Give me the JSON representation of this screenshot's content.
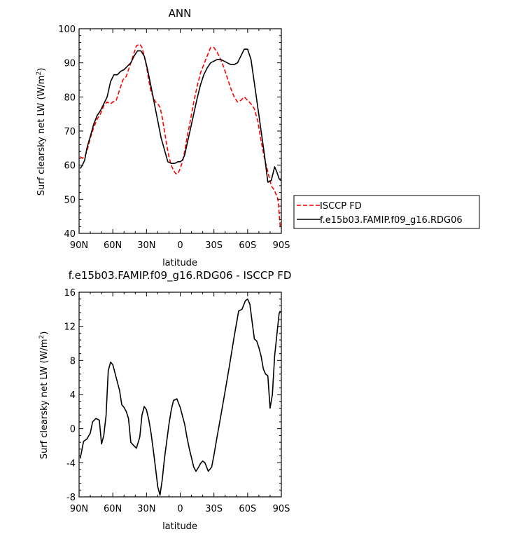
{
  "chart_data": [
    {
      "type": "line",
      "title": "ANN",
      "xlabel": "latitude",
      "ylabel": "Surf clearsky net LW (W/m²)",
      "ylabel_main": "Surf clearsky net LW (W/m",
      "ylabel_sup": "2",
      "ylabel_end": ")",
      "xlim": [
        90,
        -90
      ],
      "ylim": [
        40,
        100
      ],
      "x_ticks": [
        90,
        60,
        30,
        0,
        -30,
        -60,
        -90
      ],
      "x_tick_labels": [
        "90N",
        "60N",
        "30N",
        "0",
        "30S",
        "60S",
        "90S"
      ],
      "y_ticks": [
        40,
        50,
        60,
        70,
        80,
        90,
        100
      ],
      "y_tick_labels": [
        "40",
        "50",
        "60",
        "70",
        "80",
        "90",
        "100"
      ],
      "grid": false,
      "legend_position": "right",
      "series": [
        {
          "name": "ISCCP FD",
          "color": "#ff0000",
          "dash": "dashed",
          "x": [
            89,
            87,
            85,
            83,
            80,
            77,
            74,
            71,
            68,
            65,
            62,
            60,
            57,
            54,
            51,
            48,
            45,
            42,
            39,
            36,
            34,
            32,
            30,
            28,
            26,
            24,
            22,
            20,
            18,
            16,
            14,
            12,
            10,
            8,
            6,
            4,
            2,
            0,
            -2,
            -4,
            -6,
            -9,
            -12,
            -15,
            -18,
            -21,
            -24,
            -27,
            -30,
            -33,
            -36,
            -39,
            -42,
            -45,
            -48,
            -51,
            -54,
            -57,
            -60,
            -63,
            -66,
            -69,
            -72,
            -75,
            -78,
            -81,
            -84,
            -87,
            -89
          ],
          "y": [
            62.5,
            62,
            62.5,
            64,
            68,
            71,
            73.5,
            75,
            77.5,
            78.5,
            78,
            78.5,
            79,
            82,
            85,
            86,
            89,
            92,
            95,
            95.5,
            94.5,
            92,
            89,
            85,
            81.5,
            80,
            78.5,
            78,
            77,
            74,
            70,
            66,
            62.5,
            60,
            58.5,
            57.5,
            57.5,
            59,
            61,
            64,
            68,
            73,
            78.5,
            83,
            87,
            89.5,
            92,
            94.5,
            94.5,
            93,
            91,
            88.5,
            85.5,
            82.5,
            80,
            78.5,
            79,
            80,
            79,
            78,
            76.5,
            73,
            67,
            62,
            58,
            54,
            52.5,
            50,
            42
          ]
        },
        {
          "name": "f.e15b03.FAMIP.f09_g16.RDG06",
          "color": "#000000",
          "dash": "solid",
          "x": [
            89,
            87,
            85,
            83,
            80,
            77,
            74,
            71,
            68,
            65,
            62,
            59,
            56,
            53,
            50,
            47,
            44,
            41,
            38,
            35,
            32,
            29,
            26,
            23,
            20,
            17,
            14,
            11,
            8,
            5,
            2,
            0,
            -2,
            -4,
            -6,
            -9,
            -12,
            -15,
            -18,
            -21,
            -24,
            -27,
            -30,
            -33,
            -36,
            -39,
            -42,
            -45,
            -48,
            -51,
            -54,
            -57,
            -60,
            -63,
            -66,
            -69,
            -72,
            -75,
            -78,
            -81,
            -84,
            -86,
            -88,
            -89.5
          ],
          "y": [
            59,
            60,
            61.5,
            65,
            68.5,
            72,
            74.5,
            76,
            78,
            80,
            84.5,
            86.5,
            86.5,
            87.5,
            88,
            89,
            90,
            92,
            93.5,
            93.5,
            92,
            88,
            83,
            78,
            73,
            68,
            64.5,
            61,
            60.5,
            60.5,
            61,
            61,
            61.5,
            63,
            66,
            70.5,
            75,
            79.5,
            83.5,
            86.5,
            88.5,
            90,
            90.5,
            91,
            91,
            90.5,
            90,
            89.5,
            89.5,
            90,
            92,
            94,
            94,
            91,
            84,
            77,
            70,
            63,
            55,
            55.5,
            59.5,
            58,
            56,
            55.5
          ]
        }
      ]
    },
    {
      "type": "line",
      "title": "f.e15b03.FAMIP.f09_g16.RDG06 - ISCCP FD",
      "xlabel": "latitude",
      "ylabel": "Surf clearsky net LW (W/m²)",
      "ylabel_main": "Surf clearsky net LW (W/m",
      "ylabel_sup": "2",
      "ylabel_end": ")",
      "xlim": [
        90,
        -90
      ],
      "ylim": [
        -8,
        16
      ],
      "x_ticks": [
        90,
        60,
        30,
        0,
        -30,
        -60,
        -90
      ],
      "x_tick_labels": [
        "90N",
        "60N",
        "30N",
        "0",
        "30S",
        "60S",
        "90S"
      ],
      "y_ticks": [
        -8,
        -4,
        0,
        4,
        8,
        12,
        16
      ],
      "y_tick_labels": [
        "-8",
        "-4",
        "0",
        "4",
        "8",
        "12",
        "16"
      ],
      "grid": false,
      "series": [
        {
          "color": "#000000",
          "dash": "solid",
          "x": [
            89,
            86,
            83,
            80,
            78,
            75,
            72,
            70,
            68,
            66,
            64,
            62,
            60,
            58,
            56,
            54,
            52,
            50,
            48,
            46,
            44,
            42,
            39,
            36,
            34,
            32,
            30,
            28,
            26,
            24,
            22,
            20,
            18,
            16,
            14,
            12,
            10,
            8,
            6,
            3,
            0,
            -2,
            -4,
            -6,
            -8,
            -10,
            -12,
            -14,
            -16,
            -18,
            -20,
            -22,
            -25,
            -28,
            -30,
            -33,
            -36,
            -40,
            -44,
            -48,
            -52,
            -55,
            -58,
            -60,
            -62,
            -64,
            -66,
            -68,
            -70,
            -72,
            -74,
            -76,
            -78,
            -80,
            -82,
            -84,
            -86,
            -88,
            -89
          ],
          "y": [
            -3.5,
            -1.5,
            -1.2,
            -0.5,
            0.8,
            1.2,
            1,
            -1.8,
            -0.8,
            1.5,
            6.8,
            7.8,
            7.5,
            6.5,
            5.5,
            4.5,
            2.8,
            2.5,
            2,
            1.2,
            -1.6,
            -1.9,
            -2.3,
            -1,
            1.6,
            2.6,
            2.2,
            1.1,
            -0.5,
            -2.5,
            -4.6,
            -6.8,
            -7.8,
            -6,
            -3.5,
            -1.5,
            0.5,
            2.2,
            3.3,
            3.5,
            2.5,
            1.5,
            0.5,
            -1,
            -2.3,
            -3.4,
            -4.5,
            -5,
            -4.6,
            -4.1,
            -3.8,
            -4,
            -5,
            -4.5,
            -3.1,
            -0.8,
            1.4,
            4.4,
            7.5,
            10.8,
            13.8,
            14,
            15,
            15.2,
            14.6,
            12.5,
            10.5,
            10.3,
            9.5,
            8.5,
            7,
            6.4,
            6.2,
            2.4,
            4,
            8.5,
            11,
            13.5,
            13.8
          ]
        }
      ]
    }
  ]
}
